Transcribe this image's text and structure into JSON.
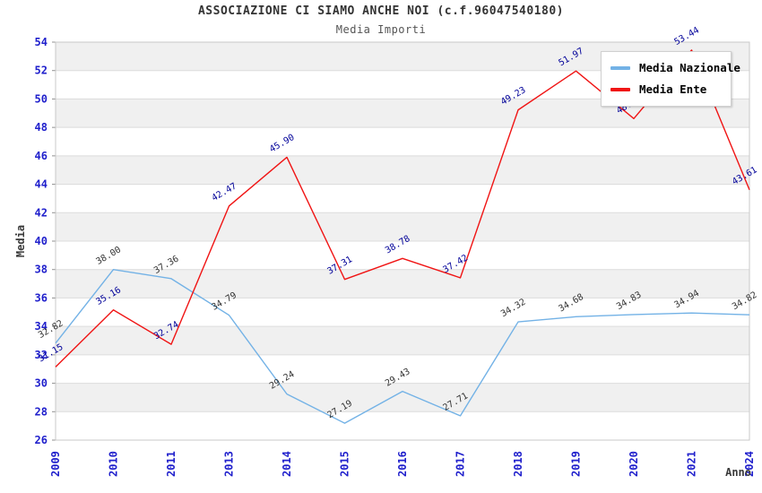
{
  "header": {
    "title": "ASSOCIAZIONE CI SIAMO ANCHE NOI (c.f.96047540180)",
    "subtitle": "Media Importi"
  },
  "chart_data": {
    "type": "line",
    "title": "ASSOCIAZIONE CI SIAMO ANCHE NOI (c.f.96047540180)",
    "subtitle": "Media Importi",
    "xlabel": "Anno",
    "ylabel": "Media",
    "categories": [
      "2009",
      "2010",
      "2011",
      "2013",
      "2014",
      "2015",
      "2016",
      "2017",
      "2018",
      "2019",
      "2020",
      "2021",
      "2024"
    ],
    "series": [
      {
        "name": "Media Nazionale",
        "color": "#73B2E6",
        "label_color": "#333333",
        "values": [
          32.82,
          38.0,
          37.36,
          34.79,
          29.24,
          27.19,
          29.43,
          27.71,
          34.32,
          34.68,
          34.83,
          34.94,
          34.82
        ]
      },
      {
        "name": "Media Ente",
        "color": "#F01414",
        "label_color": "#000099",
        "values": [
          31.15,
          35.16,
          32.74,
          42.47,
          45.9,
          37.31,
          38.78,
          37.42,
          49.23,
          51.97,
          48.62,
          53.44,
          43.61
        ]
      }
    ],
    "ylim": [
      26,
      54
    ],
    "ytick_step": 2,
    "grid": "horizontal-bands-alternating",
    "legend_position": "top-right",
    "colors": {
      "tick_label": "#2020CC",
      "axis_title": "#3A3A3A",
      "band_fill": "#F0F0F0",
      "gridline": "#DCDCDC",
      "plot_border": "#C9C9C9",
      "tick_mark": "#909090"
    }
  }
}
